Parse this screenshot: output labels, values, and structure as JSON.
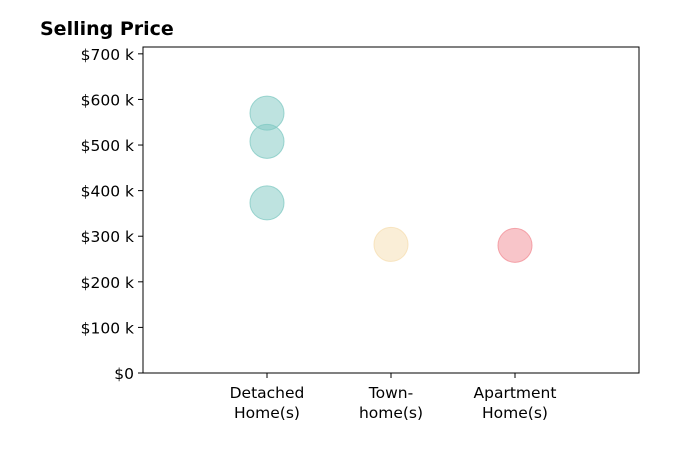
{
  "chart_data": {
    "type": "scatter",
    "title": "Selling Price",
    "xlabel": "",
    "ylabel": "",
    "categories": [
      [
        "Detached",
        "Home(s)"
      ],
      [
        "Town-",
        "home(s)"
      ],
      [
        "Apartment",
        "Home(s)"
      ]
    ],
    "xlim": [
      -1,
      3
    ],
    "ylim": [
      0,
      715
    ],
    "y_unit": "thousand USD",
    "y_ticks": [
      0,
      100,
      200,
      300,
      400,
      500,
      600,
      700
    ],
    "y_tick_labels": [
      "$0",
      "$100 k",
      "$200 k",
      "$300 k",
      "$400 k",
      "$500 k",
      "$600 k",
      "$700 k"
    ],
    "grid": false,
    "legend": "none",
    "points": [
      {
        "category_index": 0,
        "value": 570,
        "color": "#7ec8c1"
      },
      {
        "category_index": 0,
        "value": 508,
        "color": "#7ec8c1"
      },
      {
        "category_index": 0,
        "value": 373,
        "color": "#7ec8c1"
      },
      {
        "category_index": 1,
        "value": 282,
        "color": "#f5deb0"
      },
      {
        "category_index": 2,
        "value": 280,
        "color": "#f28b93"
      }
    ]
  }
}
